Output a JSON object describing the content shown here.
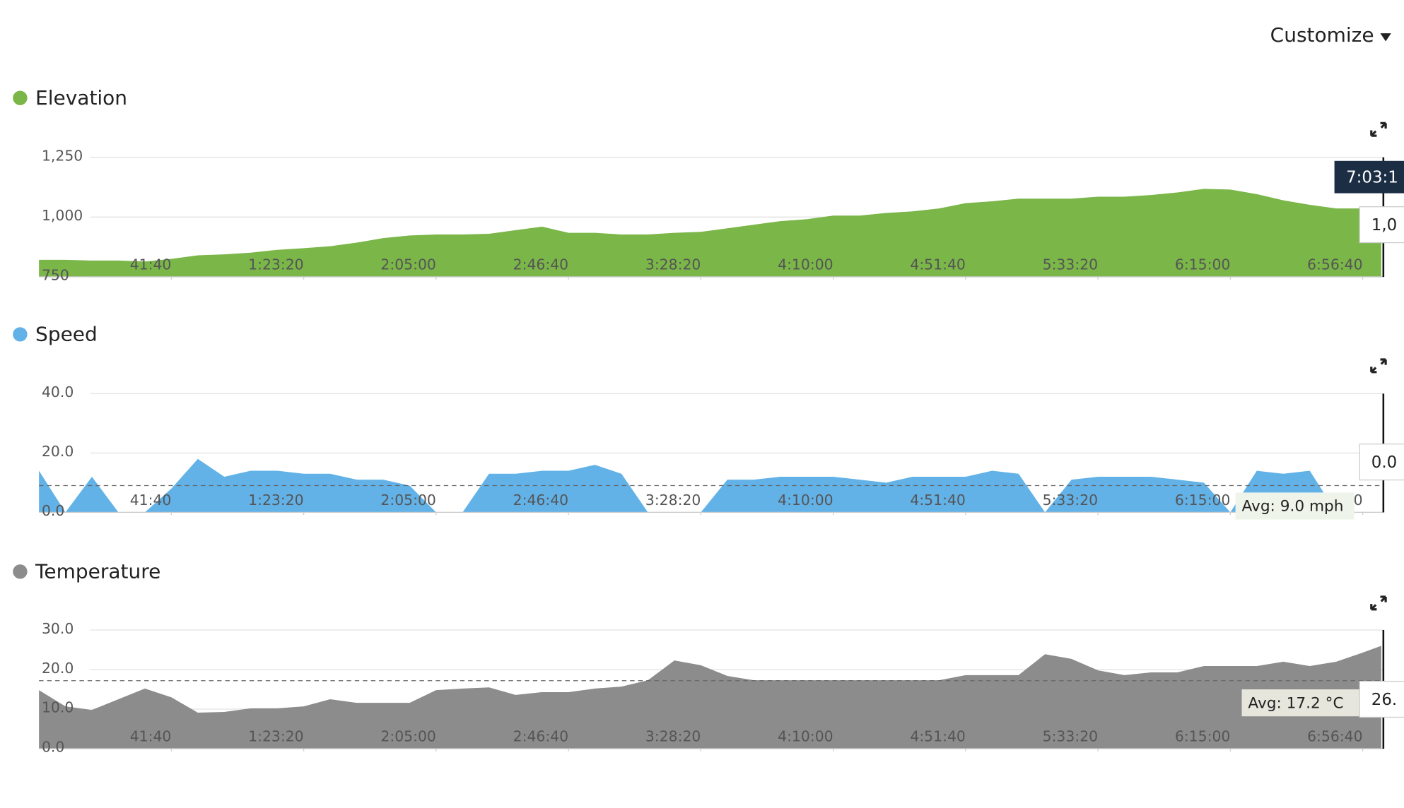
{
  "header": {
    "customize": "Customize"
  },
  "chart_data": [
    {
      "type": "area",
      "title": "Elevation",
      "color": "#7ab648",
      "x": [
        0,
        500,
        1000,
        1500,
        2000,
        2500,
        3000,
        3500,
        4000,
        4500,
        5000,
        5500,
        6000,
        6500,
        7000,
        7500,
        8000,
        8500,
        9000,
        9500,
        10000,
        10500,
        11000,
        11500,
        12000,
        12500,
        13000,
        13500,
        14000,
        14500,
        15000,
        15500,
        16000,
        16500,
        17000,
        17500,
        18000,
        18500,
        19000,
        19500,
        20000,
        20500,
        21000,
        21500,
        22000,
        22500,
        23000,
        23500,
        24000,
        24500,
        25000,
        25350
      ],
      "values": [
        821,
        821,
        818,
        818,
        814,
        825,
        840,
        844,
        851,
        863,
        870,
        878,
        893,
        912,
        923,
        927,
        927,
        930,
        945,
        960,
        934,
        934,
        927,
        927,
        934,
        938,
        953,
        968,
        983,
        991,
        1006,
        1006,
        1017,
        1024,
        1036,
        1058,
        1066,
        1077,
        1077,
        1077,
        1085,
        1085,
        1092,
        1103,
        1118,
        1115,
        1096,
        1070,
        1051,
        1036,
        1036,
        1036
      ],
      "xlim": [
        0,
        25400
      ],
      "xticks": [
        {
          "value": 2500,
          "label": "41:40"
        },
        {
          "value": 5000,
          "label": "1:23:20"
        },
        {
          "value": 7500,
          "label": "2:05:00"
        },
        {
          "value": 10000,
          "label": "2:46:40"
        },
        {
          "value": 12500,
          "label": "3:28:20"
        },
        {
          "value": 15000,
          "label": "4:10:00"
        },
        {
          "value": 17500,
          "label": "4:51:40"
        },
        {
          "value": 20000,
          "label": "5:33:20"
        },
        {
          "value": 22500,
          "label": "6:15:00"
        },
        {
          "value": 25000,
          "label": "6:56:40"
        }
      ],
      "ylim": [
        750,
        1250
      ],
      "yticks": [
        750,
        {
          "value": 1000,
          "label": "1,000"
        },
        {
          "value": 1250,
          "label": "1,250"
        }
      ],
      "grid": true,
      "cursor": {
        "x": 25390,
        "label": "7:03:1",
        "value_label": "1,0"
      }
    },
    {
      "type": "area",
      "title": "Speed",
      "color": "#62b2e8",
      "x": [
        0,
        500,
        1000,
        1500,
        2000,
        2500,
        3000,
        3500,
        4000,
        4500,
        5000,
        5500,
        6000,
        6500,
        7000,
        7500,
        8000,
        8500,
        9000,
        9500,
        10000,
        10500,
        11000,
        11500,
        12000,
        12500,
        13000,
        13500,
        14000,
        14500,
        15000,
        15500,
        16000,
        16500,
        17000,
        17500,
        18000,
        18500,
        19000,
        19500,
        20000,
        20500,
        21000,
        21500,
        22000,
        22500,
        23000,
        23500,
        24000,
        24500,
        25000,
        25350
      ],
      "values": [
        14,
        0,
        12,
        0,
        0,
        8,
        18,
        12,
        14,
        14,
        13,
        13,
        11,
        11,
        9,
        0,
        0,
        13,
        13,
        14,
        14,
        16,
        13,
        0,
        0,
        0,
        11,
        11,
        12,
        12,
        12,
        11,
        10,
        12,
        12,
        12,
        14,
        13,
        0,
        11,
        12,
        12,
        12,
        11,
        10,
        0,
        14,
        13,
        14,
        0,
        0,
        0
      ],
      "xlim": [
        0,
        25400
      ],
      "xticks": [
        {
          "value": 2500,
          "label": "41:40"
        },
        {
          "value": 5000,
          "label": "1:23:20"
        },
        {
          "value": 7500,
          "label": "2:05:00"
        },
        {
          "value": 10000,
          "label": "2:46:40"
        },
        {
          "value": 12500,
          "label": "3:28:20"
        },
        {
          "value": 15000,
          "label": "4:10:00"
        },
        {
          "value": 17500,
          "label": "4:51:40"
        },
        {
          "value": 20000,
          "label": "5:33:20"
        },
        {
          "value": 22500,
          "label": "6:15:00"
        },
        {
          "value": 25000,
          "label": "6:56:40"
        }
      ],
      "ylim": [
        0,
        40
      ],
      "yticks": [
        {
          "value": 0,
          "label": "0.0"
        },
        {
          "value": 20,
          "label": "20.0"
        },
        {
          "value": 40,
          "label": "40.0"
        }
      ],
      "grid": true,
      "avg": 9.0,
      "avg_label": "Avg: 9.0 mph",
      "cursor": {
        "x": 25390,
        "value_label": "0.0"
      }
    },
    {
      "type": "area",
      "title": "Temperature",
      "color": "#8c8c8c",
      "x": [
        0,
        500,
        1000,
        1500,
        2000,
        2500,
        3000,
        3500,
        4000,
        4500,
        5000,
        5500,
        6000,
        6500,
        7000,
        7500,
        8000,
        8500,
        9000,
        9500,
        10000,
        10500,
        11000,
        11500,
        12000,
        12500,
        13000,
        13500,
        14000,
        14500,
        15000,
        15500,
        16000,
        16500,
        17000,
        17500,
        18000,
        18500,
        19000,
        19500,
        20000,
        20500,
        21000,
        21500,
        22000,
        22500,
        23000,
        23500,
        24000,
        24500,
        25000,
        25350
      ],
      "values": [
        14.8,
        10.7,
        9.8,
        12.5,
        15.2,
        13,
        9.1,
        9.3,
        10.2,
        10.2,
        10.7,
        12.5,
        11.6,
        11.6,
        11.6,
        14.8,
        15.2,
        15.5,
        13.6,
        14.3,
        14.3,
        15.2,
        15.7,
        17.3,
        22.3,
        21.1,
        18.4,
        17.3,
        17.3,
        17.3,
        17.3,
        17.3,
        17.3,
        17.3,
        17.3,
        18.6,
        18.6,
        18.6,
        23.9,
        22.7,
        19.8,
        18.6,
        19.3,
        19.3,
        20.9,
        20.9,
        20.9,
        22,
        20.9,
        22,
        24.3,
        26
      ],
      "xlim": [
        0,
        25400
      ],
      "xticks": [
        {
          "value": 2500,
          "label": "41:40"
        },
        {
          "value": 5000,
          "label": "1:23:20"
        },
        {
          "value": 7500,
          "label": "2:05:00"
        },
        {
          "value": 10000,
          "label": "2:46:40"
        },
        {
          "value": 12500,
          "label": "3:28:20"
        },
        {
          "value": 15000,
          "label": "4:10:00"
        },
        {
          "value": 17500,
          "label": "4:51:40"
        },
        {
          "value": 20000,
          "label": "5:33:20"
        },
        {
          "value": 22500,
          "label": "6:15:00"
        },
        {
          "value": 25000,
          "label": "6:56:40"
        }
      ],
      "ylim": [
        0,
        30
      ],
      "yticks": [
        {
          "value": 0,
          "label": "0.0"
        },
        {
          "value": 10,
          "label": "10.0"
        },
        {
          "value": 20,
          "label": "20.0"
        },
        {
          "value": 30,
          "label": "30.0"
        }
      ],
      "grid": true,
      "avg": 17.2,
      "avg_label": "Avg: 17.2 °C",
      "cursor": {
        "x": 25390,
        "value_label": "26."
      }
    }
  ]
}
